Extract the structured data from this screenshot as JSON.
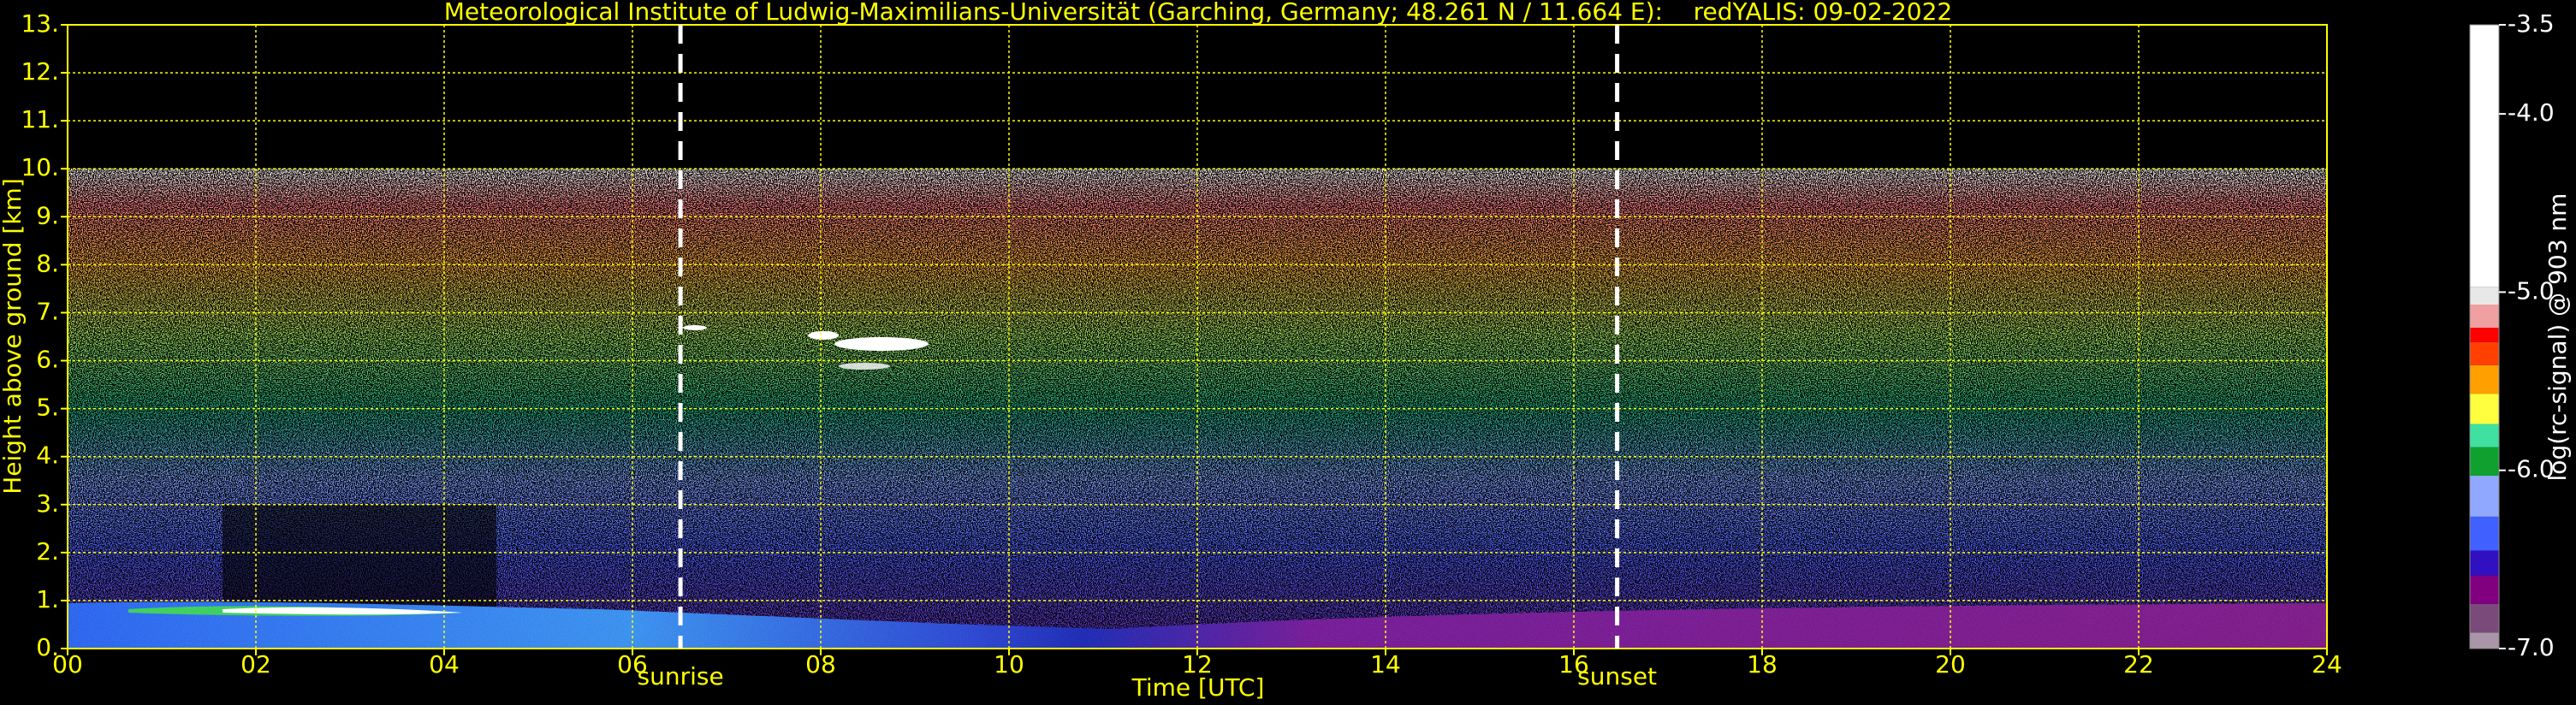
{
  "chart_data": {
    "type": "heatmap",
    "title": "Meteorological Institute of Ludwig-Maximilians-Universität (Garching, Germany; 48.261 N / 11.664 E):    redYALIS: 09-02-2022",
    "xlabel": "Time [UTC]",
    "ylabel": "Height above ground [km]",
    "xlim": [
      0,
      24
    ],
    "xticks": [
      {
        "value": 0,
        "label": "00"
      },
      {
        "value": 2,
        "label": "02"
      },
      {
        "value": 4,
        "label": "04"
      },
      {
        "value": 6,
        "label": "06"
      },
      {
        "value": 8,
        "label": "08"
      },
      {
        "value": 10,
        "label": "10"
      },
      {
        "value": 12,
        "label": "12"
      },
      {
        "value": 14,
        "label": "14"
      },
      {
        "value": 16,
        "label": "16"
      },
      {
        "value": 18,
        "label": "18"
      },
      {
        "value": 20,
        "label": "20"
      },
      {
        "value": 22,
        "label": "22"
      },
      {
        "value": 24,
        "label": "24"
      }
    ],
    "ylim": [
      0,
      13
    ],
    "yticks": [
      {
        "value": 0,
        "label": "0."
      },
      {
        "value": 1,
        "label": "1."
      },
      {
        "value": 2,
        "label": "2."
      },
      {
        "value": 3,
        "label": "3."
      },
      {
        "value": 4,
        "label": "4."
      },
      {
        "value": 5,
        "label": "5."
      },
      {
        "value": 6,
        "label": "6."
      },
      {
        "value": 7,
        "label": "7."
      },
      {
        "value": 8,
        "label": "8."
      },
      {
        "value": 9,
        "label": "9."
      },
      {
        "value": 10,
        "label": "10."
      },
      {
        "value": 11,
        "label": "11."
      },
      {
        "value": 12,
        "label": "12."
      },
      {
        "value": 13,
        "label": "13."
      }
    ],
    "grid": true,
    "annotations": [
      {
        "text": "sunrise",
        "x": 6.51
      },
      {
        "text": "sunset",
        "x": 16.46
      }
    ],
    "colorbar": {
      "label": "log(rc-signal) @ 903 nm",
      "lim": [
        -7,
        -3.5
      ],
      "ticks": [
        -3.5,
        {
          "value": -4,
          "label": "-4.0"
        },
        {
          "value": -5,
          "label": "-5.0"
        },
        {
          "value": -6,
          "label": "-6.0"
        },
        {
          "value": -7,
          "label": "-7.0"
        }
      ],
      "colormap": [
        {
          "value": -7.0,
          "color": "#a896a8"
        },
        {
          "value": -6.91,
          "color": "#7a4a7a"
        },
        {
          "value": -6.75,
          "color": "#800080"
        },
        {
          "value": -6.59,
          "color": "#3010c0"
        },
        {
          "value": -6.45,
          "color": "#4060ff"
        },
        {
          "value": -6.26,
          "color": "#90a8ff"
        },
        {
          "value": -6.03,
          "color": "#10a030"
        },
        {
          "value": -5.87,
          "color": "#40e0a0"
        },
        {
          "value": -5.74,
          "color": "#ffff40"
        },
        {
          "value": -5.57,
          "color": "#ffa000"
        },
        {
          "value": -5.41,
          "color": "#ff4000"
        },
        {
          "value": -5.28,
          "color": "#ff0000"
        },
        {
          "value": -5.2,
          "color": "#f0a0a0"
        },
        {
          "value": -5.07,
          "color": "#e8e8e8"
        },
        {
          "value": -4.97,
          "color": "#ffffff"
        }
      ]
    }
  }
}
